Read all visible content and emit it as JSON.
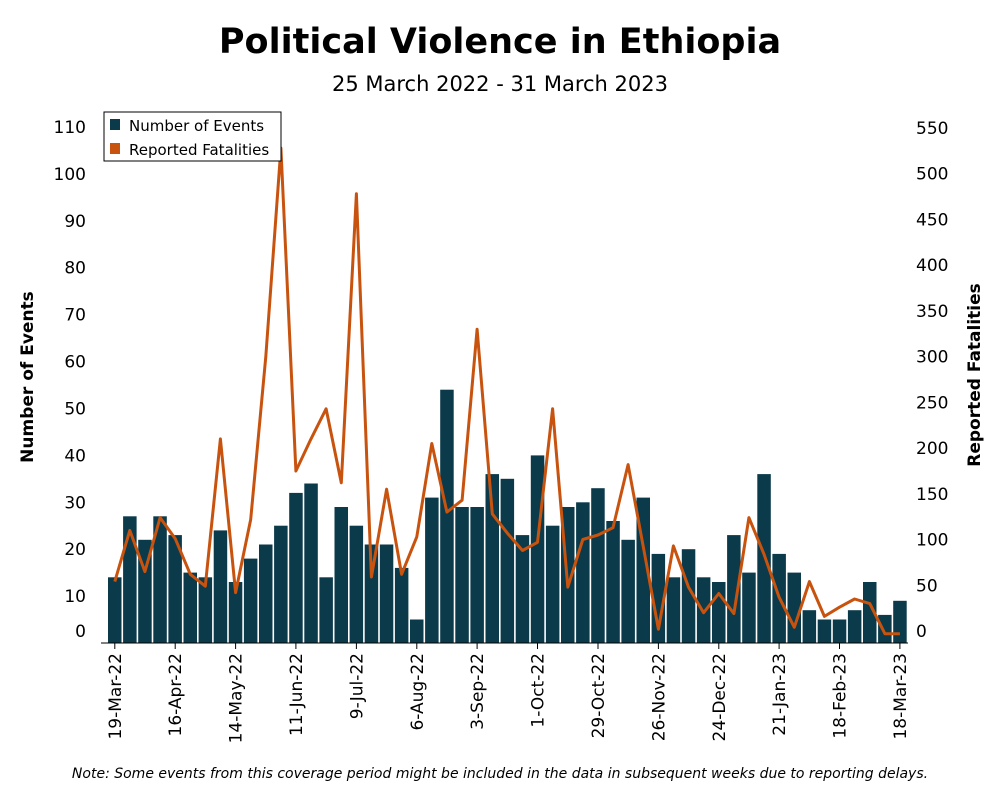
{
  "title": "Political Violence in Ethiopia",
  "subtitle": "25 March 2022 - 31 March 2023",
  "note": "Note: Some events from this coverage period might be included in the data in subsequent weeks due to reporting delays.",
  "colors": {
    "bars": "#0b3a4b",
    "line": "#c8530f"
  },
  "chart_data": {
    "type": "bar",
    "title": "Political Violence in Ethiopia",
    "subtitle": "25 March 2022 - 31 March 2023",
    "ylabel": "Number of Events",
    "y2label": "Reported Fatalities",
    "ylim": [
      0,
      110
    ],
    "y2lim": [
      0,
      550
    ],
    "yticks": [
      0,
      10,
      20,
      30,
      40,
      50,
      60,
      70,
      80,
      90,
      100,
      110
    ],
    "y2ticks": [
      0,
      50,
      100,
      150,
      200,
      250,
      300,
      350,
      400,
      450,
      500,
      550
    ],
    "xtick_labels": [
      "19-Mar-22",
      "16-Apr-22",
      "14-May-22",
      "11-Jun-22",
      "9-Jul-22",
      "6-Aug-22",
      "3-Sep-22",
      "1-Oct-22",
      "29-Oct-22",
      "26-Nov-22",
      "24-Dec-22",
      "21-Jan-23",
      "18-Feb-23",
      "18-Mar-23"
    ],
    "legend": {
      "placement": "top-left",
      "entries": [
        "Number of Events",
        "Reported Fatalities"
      ]
    },
    "grid": false,
    "series": [
      {
        "name": "Number of Events",
        "axis": "left",
        "type": "bar",
        "values": [
          14,
          27,
          22,
          27,
          23,
          15,
          14,
          24,
          13,
          18,
          21,
          25,
          32,
          34,
          14,
          29,
          25,
          21,
          21,
          16,
          5,
          31,
          54,
          29,
          29,
          36,
          35,
          23,
          40,
          25,
          29,
          30,
          33,
          26,
          22,
          31,
          19,
          14,
          20,
          14,
          13,
          23,
          15,
          36,
          19,
          15,
          7,
          5,
          5,
          7,
          13,
          6,
          9
        ]
      },
      {
        "name": "Reported Fatalities",
        "axis": "right",
        "type": "line",
        "values": [
          54,
          110,
          65,
          124,
          101,
          62,
          49,
          210,
          42,
          122,
          300,
          528,
          175,
          210,
          243,
          162,
          478,
          59,
          155,
          62,
          103,
          205,
          130,
          143,
          330,
          128,
          107,
          88,
          97,
          243,
          48,
          100,
          105,
          113,
          182,
          92,
          2,
          93,
          48,
          20,
          41,
          19,
          124,
          84,
          37,
          4,
          54,
          16,
          26,
          35,
          30,
          -3,
          -3
        ]
      }
    ]
  }
}
